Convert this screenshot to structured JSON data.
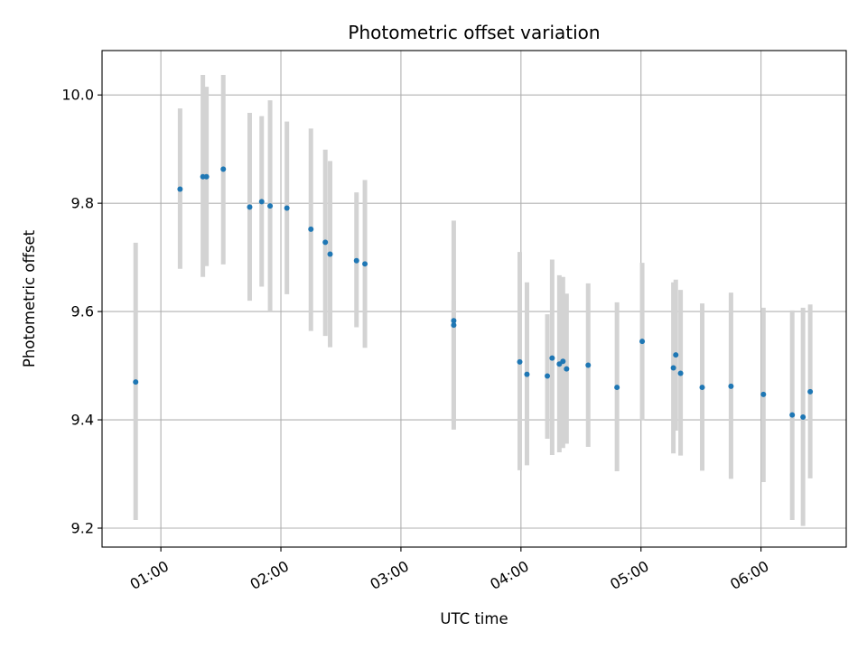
{
  "chart_data": {
    "type": "scatter",
    "title": "Photometric offset variation",
    "xlabel": "UTC time",
    "ylabel": "Photometric offset",
    "x_unit": "UTC time (hours)",
    "xlim": [
      0.51,
      6.71
    ],
    "ylim": [
      9.165,
      10.082
    ],
    "grid": true,
    "x_ticks": [
      {
        "value": 1,
        "label": "01:00"
      },
      {
        "value": 2,
        "label": "02:00"
      },
      {
        "value": 3,
        "label": "03:00"
      },
      {
        "value": 4,
        "label": "04:00"
      },
      {
        "value": 5,
        "label": "05:00"
      },
      {
        "value": 6,
        "label": "06:00"
      }
    ],
    "y_ticks": [
      {
        "value": 9.2,
        "label": "9.2"
      },
      {
        "value": 9.4,
        "label": "9.4"
      },
      {
        "value": 9.6,
        "label": "9.6"
      },
      {
        "value": 9.8,
        "label": "9.8"
      },
      {
        "value": 10.0,
        "label": "10.0"
      }
    ],
    "point_color": "#1f77b4",
    "errorbar_color": "#d3d3d3",
    "points": [
      {
        "x": 0.79,
        "y": 9.47,
        "lo": 9.215,
        "hi": 9.727
      },
      {
        "x": 1.16,
        "y": 9.826,
        "lo": 9.679,
        "hi": 9.975
      },
      {
        "x": 1.35,
        "y": 9.849,
        "lo": 9.664,
        "hi": 10.037
      },
      {
        "x": 1.38,
        "y": 9.849,
        "lo": 9.684,
        "hi": 10.015
      },
      {
        "x": 1.52,
        "y": 9.863,
        "lo": 9.687,
        "hi": 10.037
      },
      {
        "x": 1.74,
        "y": 9.793,
        "lo": 9.62,
        "hi": 9.967
      },
      {
        "x": 1.84,
        "y": 9.803,
        "lo": 9.646,
        "hi": 9.961
      },
      {
        "x": 1.91,
        "y": 9.795,
        "lo": 9.6,
        "hi": 9.99
      },
      {
        "x": 2.05,
        "y": 9.791,
        "lo": 9.632,
        "hi": 9.951
      },
      {
        "x": 2.25,
        "y": 9.752,
        "lo": 9.564,
        "hi": 9.938
      },
      {
        "x": 2.37,
        "y": 9.728,
        "lo": 9.555,
        "hi": 9.899
      },
      {
        "x": 2.41,
        "y": 9.706,
        "lo": 9.534,
        "hi": 9.878
      },
      {
        "x": 2.63,
        "y": 9.694,
        "lo": 9.571,
        "hi": 9.82
      },
      {
        "x": 2.7,
        "y": 9.688,
        "lo": 9.533,
        "hi": 9.843
      },
      {
        "x": 3.44,
        "y": 9.583,
        "lo": 9.395,
        "hi": 9.768
      },
      {
        "x": 3.44,
        "y": 9.575,
        "lo": 9.382,
        "hi": 9.62
      },
      {
        "x": 3.99,
        "y": 9.507,
        "lo": 9.307,
        "hi": 9.71
      },
      {
        "x": 4.05,
        "y": 9.484,
        "lo": 9.316,
        "hi": 9.654
      },
      {
        "x": 4.22,
        "y": 9.481,
        "lo": 9.365,
        "hi": 9.595
      },
      {
        "x": 4.26,
        "y": 9.514,
        "lo": 9.335,
        "hi": 9.696
      },
      {
        "x": 4.32,
        "y": 9.503,
        "lo": 9.34,
        "hi": 9.667
      },
      {
        "x": 4.35,
        "y": 9.508,
        "lo": 9.348,
        "hi": 9.664
      },
      {
        "x": 4.38,
        "y": 9.494,
        "lo": 9.356,
        "hi": 9.633
      },
      {
        "x": 4.56,
        "y": 9.501,
        "lo": 9.35,
        "hi": 9.652
      },
      {
        "x": 4.8,
        "y": 9.46,
        "lo": 9.305,
        "hi": 9.617
      },
      {
        "x": 5.01,
        "y": 9.545,
        "lo": 9.399,
        "hi": 9.69
      },
      {
        "x": 5.27,
        "y": 9.496,
        "lo": 9.338,
        "hi": 9.654
      },
      {
        "x": 5.29,
        "y": 9.52,
        "lo": 9.38,
        "hi": 9.659
      },
      {
        "x": 5.33,
        "y": 9.486,
        "lo": 9.334,
        "hi": 9.64
      },
      {
        "x": 5.51,
        "y": 9.46,
        "lo": 9.306,
        "hi": 9.615
      },
      {
        "x": 5.75,
        "y": 9.462,
        "lo": 9.291,
        "hi": 9.635
      },
      {
        "x": 6.02,
        "y": 9.447,
        "lo": 9.285,
        "hi": 9.607
      },
      {
        "x": 6.26,
        "y": 9.409,
        "lo": 9.215,
        "hi": 9.602
      },
      {
        "x": 6.35,
        "y": 9.405,
        "lo": 9.204,
        "hi": 9.607
      },
      {
        "x": 6.41,
        "y": 9.452,
        "lo": 9.292,
        "hi": 9.613
      }
    ]
  }
}
